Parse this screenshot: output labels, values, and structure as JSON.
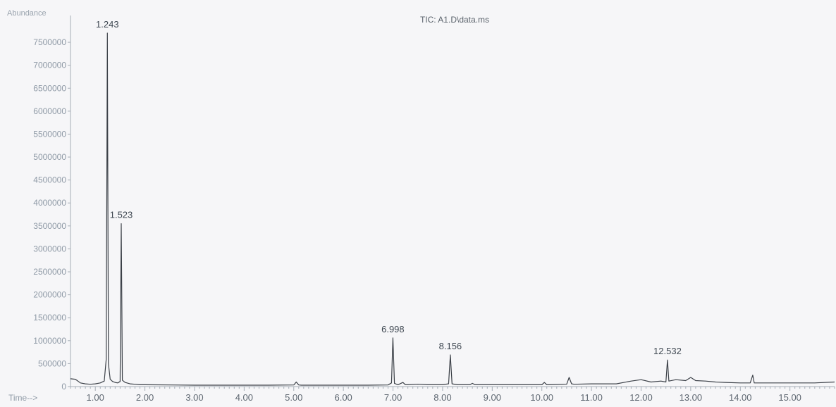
{
  "chart_data": {
    "type": "line",
    "title": "TIC: A1.D\\data.ms",
    "xlabel": "Time-->",
    "ylabel": "Abundance",
    "xlim": [
      0.5,
      15.9
    ],
    "ylim": [
      0,
      7900000
    ],
    "x_ticks": [
      "1.00",
      "2.00",
      "3.00",
      "4.00",
      "5.00",
      "6.00",
      "7.00",
      "8.00",
      "9.00",
      "10.00",
      "11.00",
      "12.00",
      "13.00",
      "14.00",
      "15.00"
    ],
    "y_ticks": [
      "0",
      "500000",
      "1000000",
      "1500000",
      "2000000",
      "2500000",
      "3000000",
      "3500000",
      "4000000",
      "4500000",
      "5000000",
      "5500000",
      "6000000",
      "6500000",
      "7000000",
      "7500000"
    ],
    "series": [
      {
        "x": [
          0.5,
          0.6,
          0.7,
          0.8,
          0.9,
          1.0,
          1.1,
          1.18,
          1.22,
          1.243,
          1.265,
          1.3,
          1.35,
          1.4,
          1.45,
          1.5,
          1.523,
          1.545,
          1.6,
          1.7,
          1.8,
          1.9,
          2.0,
          2.5,
          3.0,
          3.5,
          4.0,
          4.5,
          5.0,
          5.05,
          5.1,
          5.15,
          5.2,
          5.5,
          6.0,
          6.5,
          6.9,
          6.97,
          6.998,
          7.03,
          7.1,
          7.2,
          7.25,
          7.3,
          7.5,
          7.7,
          8.0,
          8.12,
          8.156,
          8.19,
          8.3,
          8.55,
          8.6,
          8.65,
          9.0,
          9.5,
          10.0,
          10.05,
          10.1,
          10.15,
          10.5,
          10.55,
          10.6,
          10.65,
          11.0,
          11.5,
          11.8,
          12.0,
          12.2,
          12.4,
          12.5,
          12.532,
          12.56,
          12.7,
          12.9,
          13.0,
          13.1,
          13.3,
          13.5,
          13.7,
          14.0,
          14.2,
          14.25,
          14.28,
          14.32,
          14.5,
          15.0,
          15.5,
          15.9
        ],
        "y": [
          170000,
          160000,
          80000,
          60000,
          50000,
          60000,
          80000,
          120000,
          600000,
          7700000,
          500000,
          160000,
          110000,
          90000,
          80000,
          110000,
          3550000,
          140000,
          90000,
          60000,
          50000,
          40000,
          40000,
          35000,
          30000,
          30000,
          30000,
          30000,
          35000,
          100000,
          35000,
          30000,
          30000,
          30000,
          30000,
          30000,
          35000,
          80000,
          1060000,
          70000,
          40000,
          90000,
          40000,
          40000,
          50000,
          40000,
          40000,
          60000,
          690000,
          60000,
          40000,
          40000,
          70000,
          40000,
          40000,
          40000,
          40000,
          90000,
          40000,
          40000,
          50000,
          200000,
          60000,
          50000,
          60000,
          60000,
          120000,
          150000,
          100000,
          120000,
          100000,
          580000,
          120000,
          150000,
          130000,
          200000,
          130000,
          120000,
          100000,
          90000,
          80000,
          80000,
          250000,
          80000,
          80000,
          80000,
          80000,
          80000,
          100000
        ]
      }
    ],
    "peak_labels": [
      {
        "x": 1.243,
        "y": 7700000,
        "text": "1.243"
      },
      {
        "x": 1.523,
        "y": 3550000,
        "text": "1.523"
      },
      {
        "x": 6.998,
        "y": 1060000,
        "text": "6.998"
      },
      {
        "x": 8.156,
        "y": 690000,
        "text": "8.156"
      },
      {
        "x": 12.532,
        "y": 580000,
        "text": "12.532"
      }
    ],
    "grid": false,
    "colors": {
      "trace": "#3c4148",
      "axis": "#a5adb6",
      "background": "#f6f6f8"
    }
  }
}
